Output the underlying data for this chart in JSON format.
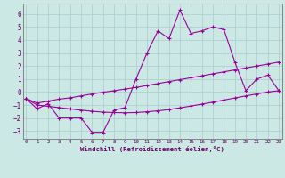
{
  "background_color": "#cce8e4",
  "grid_color": "#aacccc",
  "line_color": "#990099",
  "x_hours": [
    0,
    1,
    2,
    3,
    4,
    5,
    6,
    7,
    8,
    9,
    10,
    11,
    12,
    13,
    14,
    15,
    16,
    17,
    18,
    19,
    20,
    21,
    22,
    23
  ],
  "windchill": [
    -0.5,
    -1.3,
    -0.9,
    -2.0,
    -2.0,
    -2.0,
    -3.1,
    -3.1,
    -1.4,
    -1.2,
    1.0,
    3.0,
    4.7,
    4.1,
    6.3,
    4.5,
    4.7,
    5.0,
    4.8,
    2.3,
    0.1,
    1.0,
    1.3,
    0.1
  ],
  "temp_upper": [
    -0.5,
    -0.85,
    -0.7,
    -0.55,
    -0.45,
    -0.3,
    -0.15,
    -0.02,
    0.1,
    0.22,
    0.35,
    0.5,
    0.65,
    0.8,
    0.95,
    1.1,
    1.25,
    1.4,
    1.55,
    1.7,
    1.85,
    2.0,
    2.15,
    2.3
  ],
  "temp_lower": [
    -0.5,
    -1.0,
    -1.1,
    -1.2,
    -1.3,
    -1.4,
    -1.48,
    -1.55,
    -1.58,
    -1.6,
    -1.58,
    -1.52,
    -1.45,
    -1.35,
    -1.22,
    -1.08,
    -0.93,
    -0.78,
    -0.62,
    -0.46,
    -0.3,
    -0.15,
    0.0,
    0.1
  ],
  "ylim_min": -3.6,
  "ylim_max": 6.8,
  "yticks": [
    -3,
    -2,
    -1,
    0,
    1,
    2,
    3,
    4,
    5,
    6
  ],
  "xticks": [
    0,
    1,
    2,
    3,
    4,
    5,
    6,
    7,
    8,
    9,
    10,
    11,
    12,
    13,
    14,
    15,
    16,
    17,
    18,
    19,
    20,
    21,
    22,
    23
  ],
  "xlabel": "Windchill (Refroidissement éolien,°C)"
}
